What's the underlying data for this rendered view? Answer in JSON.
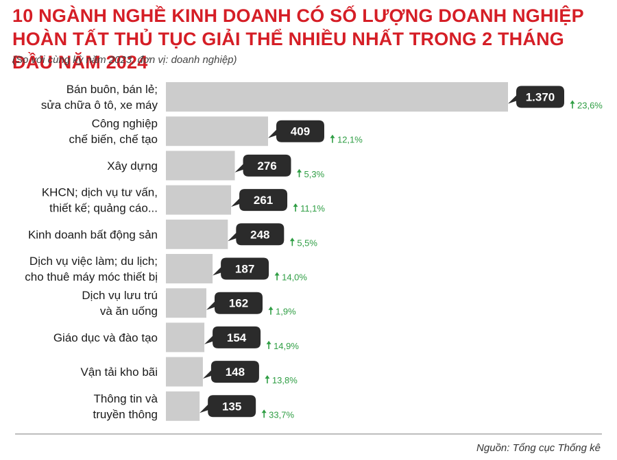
{
  "title": "10 NGÀNH NGHỀ KINH DOANH CÓ SỐ LƯỢNG DOANH NGHIỆP HOÀN TẤT THỦ TỤC GIẢI THỂ NHIỀU NHẤT TRONG 2 THÁNG ĐẦU NĂM 2024",
  "subtitle": "(So với cùng kỳ năm 2023, đơn vị: doanh nghiệp)",
  "source": "Nguồn: Tổng cục Thống kê",
  "colors": {
    "title": "#d51e26",
    "bar": "#cccccc",
    "bubble": "#2b2b2b",
    "change": "#2f9e44"
  },
  "chart_data": {
    "type": "bar",
    "orientation": "horizontal",
    "categories": [
      "Bán buôn, bán lẻ;\nsửa chữa ô tô, xe máy",
      "Công nghiệp\nchế biến, chế tạo",
      "Xây dựng",
      "KHCN; dịch vụ tư vấn,\nthiết kế; quảng cáo...",
      "Kinh doanh bất động sản",
      "Dịch vụ việc làm; du lịch;\ncho thuê máy móc thiết bị",
      "Dịch vụ lưu trú\nvà ăn uống",
      "Giáo dục và đào tạo",
      "Vận tải kho bãi",
      "Thông tin và\ntruyền thông"
    ],
    "values": [
      1370,
      409,
      276,
      261,
      248,
      187,
      162,
      154,
      148,
      135
    ],
    "value_labels": [
      "1.370",
      "409",
      "276",
      "261",
      "248",
      "187",
      "162",
      "154",
      "148",
      "135"
    ],
    "change_labels": [
      "23,6%",
      "12,1%",
      "5,3%",
      "11,1%",
      "5,5%",
      "14,0%",
      "1,9%",
      "14,9%",
      "13,8%",
      "33,7%"
    ],
    "change_direction": [
      "up",
      "up",
      "up",
      "up",
      "up",
      "up",
      "up",
      "up",
      "up",
      "up"
    ],
    "xlim": [
      0,
      1370
    ]
  }
}
